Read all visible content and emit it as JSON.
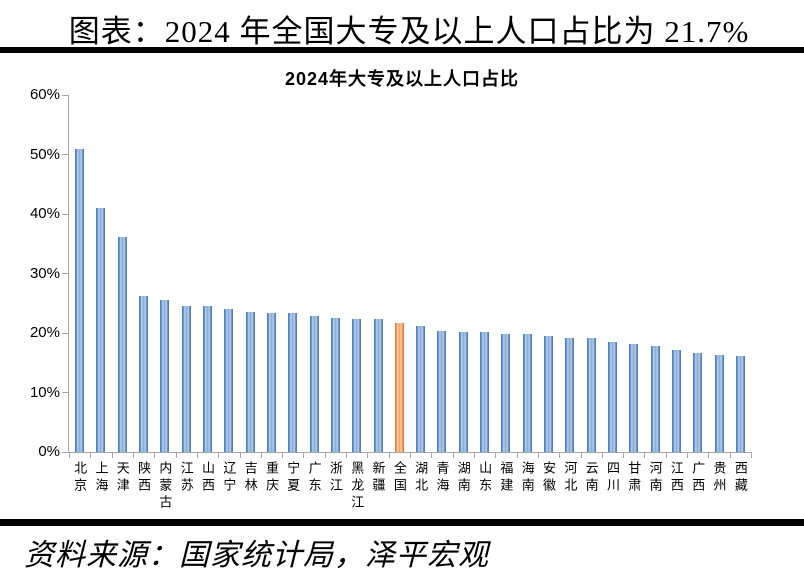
{
  "page": {
    "main_title": "图表：2024 年全国大专及以上人口占比为 21.7%",
    "source": "资料来源：国家统计局，泽平宏观"
  },
  "chart_data": {
    "type": "bar",
    "title": "2024年大专及以上人口占比",
    "categories": [
      "北京",
      "上海",
      "天津",
      "陕西",
      "内蒙古",
      "江苏",
      "山西",
      "辽宁",
      "吉林",
      "重庆",
      "宁夏",
      "广东",
      "浙江",
      "黑龙江",
      "新疆",
      "全国",
      "湖北",
      "青海",
      "湖南",
      "山东",
      "福建",
      "海南",
      "安徽",
      "河北",
      "云南",
      "四川",
      "甘肃",
      "河南",
      "江西",
      "广西",
      "贵州",
      "西藏"
    ],
    "values": [
      51.0,
      41.0,
      36.2,
      26.2,
      25.6,
      24.6,
      24.5,
      24.0,
      23.6,
      23.4,
      23.3,
      22.9,
      22.5,
      22.4,
      22.3,
      21.7,
      21.2,
      20.3,
      20.2,
      20.1,
      19.9,
      19.8,
      19.5,
      19.2,
      19.1,
      18.5,
      18.2,
      17.8,
      17.1,
      16.6,
      16.3,
      16.1
    ],
    "highlight_category": "全国",
    "highlight_index": 15,
    "highlight_value_label": "21.7%",
    "yticks": [
      "0%",
      "10%",
      "20%",
      "30%",
      "40%",
      "50%",
      "60%"
    ],
    "ylim": [
      0,
      60
    ],
    "xlabel": "",
    "ylabel": "",
    "grid": false,
    "legend": false,
    "colors": {
      "bar": "#4d80bc",
      "bar_light": "#b9cfe8",
      "highlight": "#e8803a",
      "highlight_light": "#fbd0a8",
      "axis": "#a6a6a6",
      "text": "#000000",
      "rule": "#000000",
      "background": "#ffffff"
    }
  }
}
